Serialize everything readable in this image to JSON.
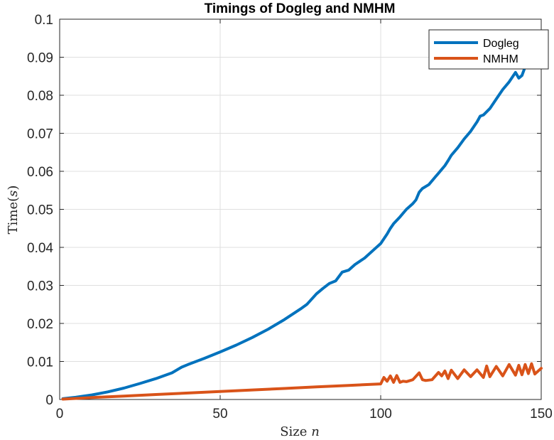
{
  "chart_data": {
    "type": "line",
    "title": "Timings of Dogleg and NMHM",
    "xlabel_word": "Size",
    "xlabel_symbol": "n",
    "ylabel_word": "Time",
    "ylabel_symbol": "s",
    "xlim": [
      0,
      150
    ],
    "ylim": [
      0,
      0.1
    ],
    "xticks": [
      0,
      50,
      100,
      150
    ],
    "xtick_labels": [
      "0",
      "50",
      "100",
      "150"
    ],
    "yticks": [
      0,
      0.01,
      0.02,
      0.03,
      0.04,
      0.05,
      0.06,
      0.07,
      0.08,
      0.09,
      0.1
    ],
    "ytick_labels": [
      "0",
      "0.01",
      "0.02",
      "0.03",
      "0.04",
      "0.05",
      "0.06",
      "0.07",
      "0.08",
      "0.09",
      "0.1"
    ],
    "grid": true,
    "legend_position": "top-right",
    "series": [
      {
        "name": "Dogleg",
        "color": "#0072BD",
        "x": [
          1,
          5,
          10,
          15,
          20,
          25,
          30,
          35,
          38,
          40,
          45,
          50,
          55,
          60,
          65,
          70,
          75,
          77,
          80,
          82,
          84,
          86,
          88,
          90,
          92,
          95,
          98,
          100,
          102,
          103,
          104,
          106,
          108,
          110,
          111,
          112,
          113,
          115,
          117,
          118,
          119,
          120,
          121,
          122,
          124,
          126,
          128,
          130,
          131,
          132,
          134,
          136,
          138,
          140,
          142,
          143,
          144,
          145,
          146,
          148,
          150
        ],
        "values": [
          0.0002,
          0.0006,
          0.0012,
          0.002,
          0.003,
          0.0042,
          0.0055,
          0.007,
          0.0085,
          0.0092,
          0.0108,
          0.0125,
          0.0143,
          0.0163,
          0.0185,
          0.021,
          0.0238,
          0.025,
          0.0278,
          0.0292,
          0.0305,
          0.0312,
          0.0335,
          0.034,
          0.0355,
          0.0372,
          0.0395,
          0.041,
          0.0435,
          0.045,
          0.0462,
          0.048,
          0.05,
          0.0515,
          0.0525,
          0.0545,
          0.0555,
          0.0565,
          0.0585,
          0.0595,
          0.0605,
          0.0615,
          0.0628,
          0.0642,
          0.0662,
          0.0685,
          0.0705,
          0.073,
          0.0745,
          0.0748,
          0.0765,
          0.079,
          0.0815,
          0.0835,
          0.086,
          0.0845,
          0.0852,
          0.0875,
          0.0888,
          0.0905,
          0.092
        ]
      },
      {
        "name": "NMHM",
        "color": "#D95319",
        "x": [
          1,
          10,
          20,
          30,
          40,
          50,
          60,
          70,
          80,
          90,
          100,
          101,
          102,
          103,
          104,
          105,
          106,
          107,
          108,
          110,
          112,
          113,
          114,
          116,
          118,
          119,
          120,
          121,
          122,
          124,
          126,
          128,
          130,
          132,
          133,
          134,
          136,
          138,
          140,
          142,
          143,
          144,
          145,
          146,
          147,
          148,
          150
        ],
        "values": [
          0.0001,
          0.0005,
          0.0009,
          0.0013,
          0.0017,
          0.0021,
          0.0025,
          0.0029,
          0.0033,
          0.0037,
          0.0041,
          0.0058,
          0.0048,
          0.0062,
          0.0045,
          0.0063,
          0.0045,
          0.0048,
          0.0047,
          0.0052,
          0.007,
          0.0052,
          0.005,
          0.0052,
          0.0071,
          0.0062,
          0.0075,
          0.0055,
          0.0077,
          0.0055,
          0.0078,
          0.006,
          0.0078,
          0.0058,
          0.0088,
          0.006,
          0.0087,
          0.0062,
          0.0092,
          0.0064,
          0.009,
          0.0065,
          0.0092,
          0.0068,
          0.0094,
          0.0067,
          0.0082
        ]
      }
    ]
  }
}
